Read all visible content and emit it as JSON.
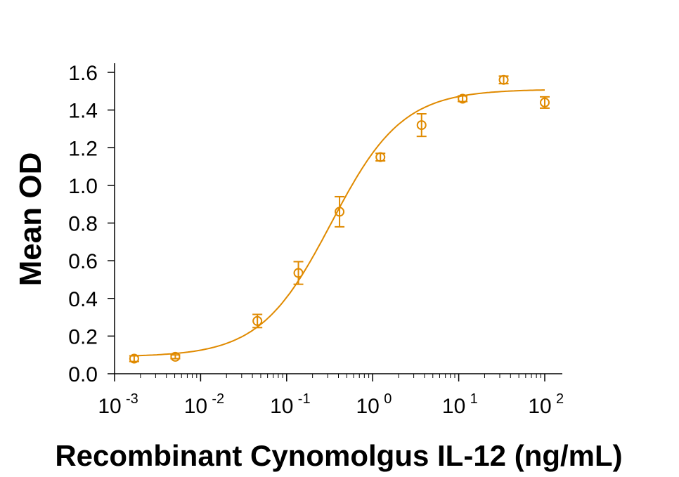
{
  "chart_data": {
    "type": "scatter",
    "title": "",
    "xlabel": "Recombinant Cynomolgus IL-12 (ng/mL)",
    "ylabel": "Mean OD",
    "x_scale": "log",
    "xlim": [
      0.001,
      100
    ],
    "ylim": [
      0.0,
      1.6
    ],
    "x_ticks": [
      {
        "base": "10",
        "exp": "-3"
      },
      {
        "base": "10",
        "exp": "-2"
      },
      {
        "base": "10",
        "exp": "-1"
      },
      {
        "base": "10",
        "exp": "0"
      },
      {
        "base": "10",
        "exp": "1"
      },
      {
        "base": "10",
        "exp": "2"
      }
    ],
    "y_ticks": [
      "0.0",
      "0.2",
      "0.4",
      "0.6",
      "0.8",
      "1.0",
      "1.2",
      "1.4",
      "1.6"
    ],
    "grid": false,
    "color": "#e08a00",
    "series": [
      {
        "points": [
          {
            "x": 0.00169,
            "y": 0.08,
            "err": 0.015
          },
          {
            "x": 0.00508,
            "y": 0.09,
            "err": 0.01
          },
          {
            "x": 0.0457,
            "y": 0.28,
            "err": 0.035
          },
          {
            "x": 0.137,
            "y": 0.535,
            "err": 0.06
          },
          {
            "x": 0.412,
            "y": 0.86,
            "err": 0.08
          },
          {
            "x": 1.23,
            "y": 1.15,
            "err": 0.02
          },
          {
            "x": 3.7,
            "y": 1.32,
            "err": 0.06
          },
          {
            "x": 11.1,
            "y": 1.46,
            "err": 0.015
          },
          {
            "x": 33.3,
            "y": 1.56,
            "err": 0.02
          },
          {
            "x": 100,
            "y": 1.44,
            "err": 0.03
          }
        ],
        "fit": {
          "model": "4PL",
          "bottom": 0.09,
          "top": 1.51,
          "ec50": 0.33,
          "hill": 1.05
        }
      }
    ]
  }
}
